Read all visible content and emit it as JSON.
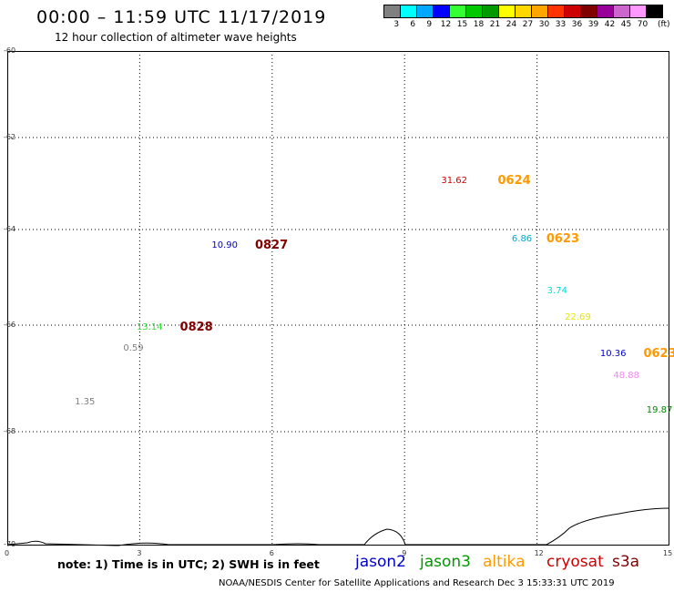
{
  "title": "00:00 – 11:59 UTC 11/17/2019",
  "subtitle": "12 hour collection of altimeter wave heights",
  "legend": {
    "unit": "(ft)",
    "swatches": [
      {
        "label": "3",
        "color": "#808080"
      },
      {
        "label": "6",
        "color": "#00ffff"
      },
      {
        "label": "9",
        "color": "#00a8ff"
      },
      {
        "label": "12",
        "color": "#0000ff"
      },
      {
        "label": "15",
        "color": "#33ff33"
      },
      {
        "label": "18",
        "color": "#00c800"
      },
      {
        "label": "21",
        "color": "#009900"
      },
      {
        "label": "24",
        "color": "#ffff00"
      },
      {
        "label": "27",
        "color": "#ffd700"
      },
      {
        "label": "30",
        "color": "#ffa500"
      },
      {
        "label": "33",
        "color": "#ff3300"
      },
      {
        "label": "36",
        "color": "#cc0000"
      },
      {
        "label": "39",
        "color": "#800000"
      },
      {
        "label": "42",
        "color": "#990099"
      },
      {
        "label": "45",
        "color": "#cc66cc"
      },
      {
        "label": "70",
        "color": "#ff99ff"
      },
      {
        "label": "",
        "color": "#000000"
      }
    ]
  },
  "axes": {
    "y_ticks": [
      "-60",
      "-62",
      "-64",
      "-66",
      "-68",
      "-70"
    ],
    "x_ticks": [
      "0",
      "3",
      "6",
      "9",
      "12",
      "15"
    ],
    "x_range": [
      0,
      15
    ],
    "y_range": [
      -70,
      -60
    ]
  },
  "observations": [
    {
      "swh": "31.62",
      "color": "#cc0000",
      "x": 10.2,
      "y": -62.95
    },
    {
      "swh": "10.90",
      "color": "#0000cc",
      "x": 5.0,
      "y": -64.35
    },
    {
      "swh": "6.86",
      "color": "#00aacc",
      "x": 11.8,
      "y": -64.2
    },
    {
      "swh": "3.74",
      "color": "#00e0e0",
      "x": 12.6,
      "y": -65.3
    },
    {
      "swh": "22.69",
      "color": "#e8e800",
      "x": 13.0,
      "y": -65.85
    },
    {
      "swh": "13.14",
      "color": "#33dd33",
      "x": 3.3,
      "y": -66.05
    },
    {
      "swh": "0.59",
      "color": "#808080",
      "x": 3.0,
      "y": -66.45
    },
    {
      "swh": "1.35",
      "color": "#808080",
      "x": 1.9,
      "y": -67.45
    },
    {
      "swh": "10.36",
      "color": "#0000cc",
      "x": 13.8,
      "y": -66.55
    },
    {
      "swh": "48.88",
      "color": "#ee88ee",
      "x": 14.1,
      "y": -66.95
    },
    {
      "swh": "19.87",
      "color": "#008800",
      "x": 14.85,
      "y": -67.6
    }
  ],
  "time_labels": [
    {
      "text": "0624",
      "color": "#ff9900",
      "x": 11.4,
      "y": -62.95
    },
    {
      "text": "0827",
      "color": "#800000",
      "x": 5.9,
      "y": -64.35
    },
    {
      "text": "0623",
      "color": "#ff9900",
      "x": 12.5,
      "y": -64.2
    },
    {
      "text": "0828",
      "color": "#800000",
      "x": 4.2,
      "y": -66.05
    },
    {
      "text": "0623",
      "color": "#ff9900",
      "x": 14.7,
      "y": -66.55
    }
  ],
  "note": "note: 1) Time is in UTC; 2) SWH is in feet",
  "satellites": [
    {
      "name": "jason2",
      "color": "#0000cc"
    },
    {
      "name": "jason3",
      "color": "#009900"
    },
    {
      "name": "altika",
      "color": "#ff9900"
    },
    {
      "name": "cryosat",
      "color": "#cc0000"
    },
    {
      "name": "s3a",
      "color": "#800000"
    }
  ],
  "credit": "NOAA/NESDIS Center for Satellite Applications and Research    Dec  3 15:33:31 UTC 2019"
}
